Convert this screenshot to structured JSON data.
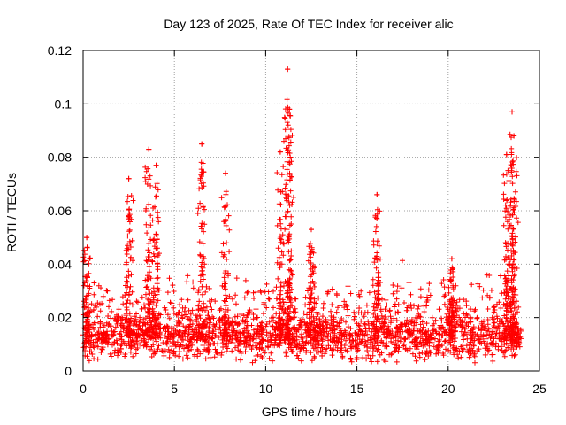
{
  "chart_data": {
    "type": "scatter",
    "title": "Day 123 of 2025, Rate Of TEC Index for receiver alic",
    "xlabel": "GPS time / hours",
    "ylabel": "ROTI / TECUs",
    "xlim": [
      0,
      25
    ],
    "ylim": [
      0,
      0.12
    ],
    "x_ticks": [
      0,
      5,
      10,
      15,
      20,
      25
    ],
    "x_tick_labels": [
      "0",
      "5",
      "10",
      "15",
      "20",
      "25"
    ],
    "y_ticks": [
      0,
      0.02,
      0.04,
      0.06,
      0.08,
      0.1,
      0.12
    ],
    "y_tick_labels": [
      "0",
      "0.02",
      "0.04",
      "0.06",
      "0.08",
      "0.1",
      "0.12"
    ],
    "grid": true,
    "marker": "+",
    "color": "#ff0000",
    "point_count_approx": 9000,
    "data_span_hours": [
      0,
      24
    ],
    "background_range": [
      0.005,
      0.03
    ],
    "background_median": 0.013,
    "peaks": [
      {
        "x": 0.2,
        "y": 0.05
      },
      {
        "x": 2.5,
        "y": 0.072
      },
      {
        "x": 3.6,
        "y": 0.083
      },
      {
        "x": 4.0,
        "y": 0.077
      },
      {
        "x": 6.5,
        "y": 0.085
      },
      {
        "x": 7.8,
        "y": 0.074
      },
      {
        "x": 10.8,
        "y": 0.082
      },
      {
        "x": 11.2,
        "y": 0.113
      },
      {
        "x": 11.3,
        "y": 0.098
      },
      {
        "x": 12.5,
        "y": 0.053
      },
      {
        "x": 16.1,
        "y": 0.066
      },
      {
        "x": 20.2,
        "y": 0.042
      },
      {
        "x": 23.2,
        "y": 0.081
      },
      {
        "x": 23.5,
        "y": 0.097
      },
      {
        "x": 23.6,
        "y": 0.088
      }
    ]
  }
}
